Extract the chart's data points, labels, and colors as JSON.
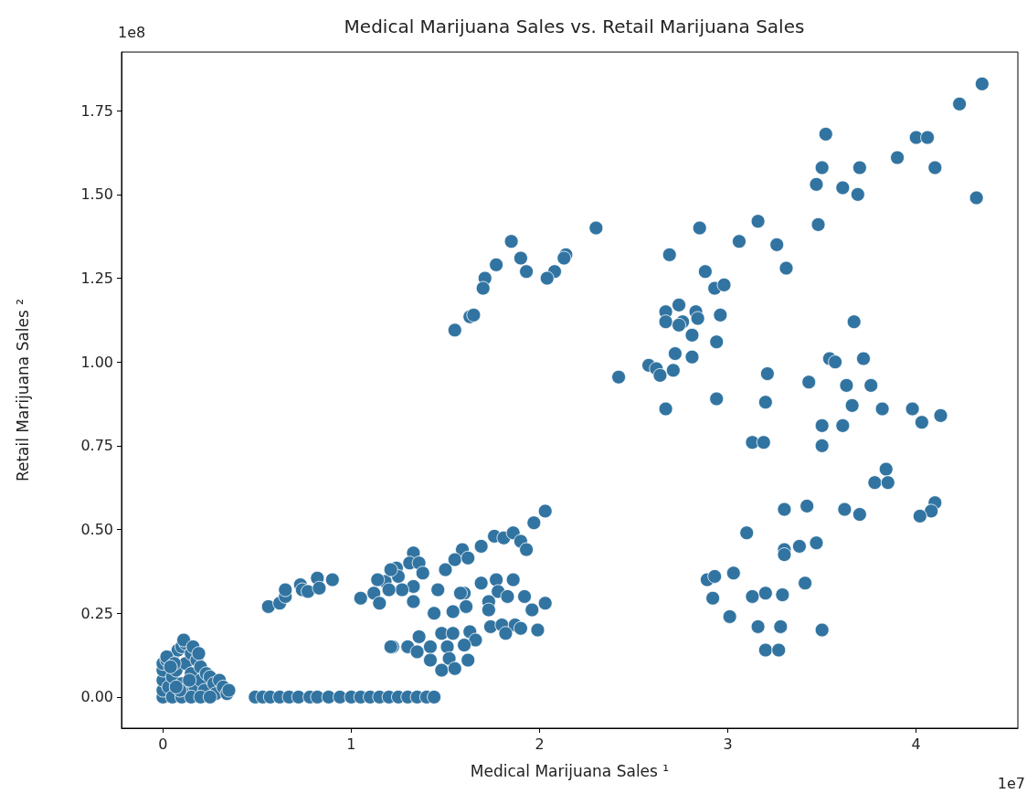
{
  "chart_data": {
    "type": "scatter",
    "title": "Medical Marijuana Sales vs. Retail Marijuana Sales",
    "xlabel": "Medical Marijuana Sales ¹",
    "ylabel": "Retail Marijuana Sales ²",
    "annotations": [
      "1e8",
      "1e7"
    ],
    "xlim": [
      -0.22,
      4.54
    ],
    "ylim": [
      -0.093,
      1.925
    ],
    "xticks": [
      0,
      1,
      2,
      3,
      4
    ],
    "yticks": [
      {
        "value": 0,
        "label": "0.00"
      },
      {
        "value": 0.25,
        "label": "0.25"
      },
      {
        "value": 0.5,
        "label": "0.50"
      },
      {
        "value": 0.75,
        "label": "0.75"
      },
      {
        "value": 1,
        "label": "1.00"
      },
      {
        "value": 1.25,
        "label": "1.25"
      },
      {
        "value": 1.5,
        "label": "1.50"
      },
      {
        "value": 1.75,
        "label": "1.75"
      }
    ],
    "grid": false,
    "marker": "circle",
    "series": [
      {
        "color": "#3274a1",
        "x": [
          4.35,
          4.23,
          3.52,
          4.0,
          4.06,
          3.9,
          3.5,
          3.7,
          4.1,
          3.47,
          3.61,
          3.69,
          4.32,
          3.16,
          3.48,
          3.26,
          3.31,
          3.67,
          3.54,
          3.57,
          3.72,
          3.21,
          3.43,
          3.63,
          3.76,
          3.2,
          3.66,
          3.82,
          3.98,
          4.13,
          4.03,
          3.5,
          3.61,
          3.13,
          3.19,
          3.5,
          3.84,
          3.78,
          3.85,
          3.3,
          3.42,
          3.62,
          3.7,
          4.1,
          4.08,
          4.02,
          3.1,
          3.3,
          3.3,
          3.38,
          3.47,
          3.41,
          3.2,
          3.13,
          3.29,
          3.16,
          3.28,
          3.5,
          3.2,
          3.27,
          2.3,
          2.85,
          3.06,
          2.69,
          2.88,
          2.93,
          2.98,
          2.74,
          2.67,
          2.67,
          2.76,
          2.74,
          2.83,
          2.84,
          2.96,
          2.81,
          2.94,
          2.72,
          2.81,
          2.58,
          2.62,
          2.64,
          2.71,
          2.42,
          2.67,
          2.94,
          2.89,
          2.93,
          3.03,
          2.92,
          3.01,
          1.85,
          1.9,
          1.93,
          1.77,
          1.71,
          1.7,
          1.63,
          1.65,
          1.55,
          2.14,
          2.13,
          2.08,
          2.04,
          2.03,
          1.97,
          1.76,
          1.81,
          1.86,
          1.9,
          1.93,
          1.69,
          1.59,
          1.55,
          1.62,
          1.5,
          1.33,
          1.31,
          1.36,
          1.24,
          1.38,
          1.25,
          1.18,
          1.14,
          1.33,
          1.27,
          1.2,
          1.12,
          1.05,
          1.15,
          1.33,
          1.46,
          1.6,
          1.58,
          1.61,
          1.54,
          1.44,
          1.69,
          1.77,
          1.86,
          1.78,
          1.83,
          1.73,
          1.73,
          1.92,
          1.96,
          2.03,
          1.74,
          1.8,
          1.87,
          1.9,
          1.82,
          1.99,
          1.22,
          1.3,
          1.36,
          1.35,
          1.42,
          1.48,
          1.54,
          1.63,
          1.66,
          1.51,
          1.6,
          1.52,
          1.42,
          1.48,
          1.55,
          1.62,
          0.56,
          0.62,
          0.65,
          0.65,
          0.73,
          0.74,
          0.77,
          0.82,
          0.83,
          0.9,
          1.21,
          1.21,
          0.49,
          0.53,
          0.57,
          0.62,
          0.67,
          0.72,
          0.78,
          0.82,
          0.88,
          0.94,
          1.0,
          1.05,
          1.1,
          1.15,
          1.2,
          1.25,
          1.3,
          1.35,
          1.4,
          1.44,
          0.0,
          0.0,
          0.0,
          0.0,
          0.0,
          0.02,
          0.03,
          0.05,
          0.05,
          0.07,
          0.08,
          0.1,
          0.1,
          0.12,
          0.12,
          0.13,
          0.15,
          0.15,
          0.17,
          0.18,
          0.2,
          0.2,
          0.22,
          0.23,
          0.25,
          0.27,
          0.28,
          0.3,
          0.32,
          0.34,
          0.35,
          0.05,
          0.1,
          0.15,
          0.2,
          0.25,
          0.02,
          0.06,
          0.09,
          0.14,
          0.11,
          0.16,
          0.19,
          0.07,
          0.04
        ],
        "values": [
          1.83,
          1.77,
          1.68,
          1.67,
          1.67,
          1.61,
          1.58,
          1.58,
          1.58,
          1.53,
          1.52,
          1.5,
          1.49,
          1.42,
          1.41,
          1.35,
          1.28,
          1.12,
          1.01,
          1.0,
          1.01,
          0.965,
          0.94,
          0.93,
          0.93,
          0.88,
          0.87,
          0.86,
          0.86,
          0.84,
          0.82,
          0.81,
          0.81,
          0.76,
          0.76,
          0.75,
          0.68,
          0.64,
          0.64,
          0.56,
          0.57,
          0.56,
          0.545,
          0.58,
          0.555,
          0.54,
          0.49,
          0.44,
          0.425,
          0.45,
          0.46,
          0.34,
          0.31,
          0.3,
          0.305,
          0.21,
          0.21,
          0.2,
          0.14,
          0.14,
          1.4,
          1.4,
          1.36,
          1.32,
          1.27,
          1.22,
          1.23,
          1.17,
          1.15,
          1.12,
          1.12,
          1.11,
          1.15,
          1.13,
          1.14,
          1.08,
          1.06,
          1.025,
          1.015,
          0.99,
          0.98,
          0.96,
          0.975,
          0.955,
          0.86,
          0.89,
          0.35,
          0.36,
          0.37,
          0.295,
          0.24,
          1.36,
          1.31,
          1.27,
          1.29,
          1.25,
          1.22,
          1.135,
          1.14,
          1.095,
          1.32,
          1.31,
          1.27,
          1.25,
          0.555,
          0.52,
          0.48,
          0.475,
          0.49,
          0.465,
          0.44,
          0.45,
          0.44,
          0.41,
          0.415,
          0.38,
          0.43,
          0.4,
          0.4,
          0.385,
          0.37,
          0.36,
          0.345,
          0.35,
          0.33,
          0.32,
          0.32,
          0.31,
          0.295,
          0.28,
          0.285,
          0.32,
          0.31,
          0.31,
          0.27,
          0.255,
          0.25,
          0.34,
          0.35,
          0.35,
          0.315,
          0.3,
          0.285,
          0.26,
          0.3,
          0.26,
          0.28,
          0.21,
          0.215,
          0.215,
          0.205,
          0.19,
          0.2,
          0.15,
          0.15,
          0.18,
          0.135,
          0.15,
          0.19,
          0.19,
          0.195,
          0.17,
          0.15,
          0.155,
          0.115,
          0.11,
          0.08,
          0.085,
          0.11,
          0.27,
          0.28,
          0.3,
          0.32,
          0.335,
          0.32,
          0.315,
          0.355,
          0.325,
          0.35,
          0.38,
          0.15,
          0,
          0,
          0,
          0,
          0,
          0,
          0,
          0,
          0,
          0,
          0,
          0,
          0,
          0,
          0,
          0,
          0,
          0,
          0,
          0,
          0.0,
          0.02,
          0.05,
          0.08,
          0.1,
          0.11,
          0.03,
          0.06,
          0.12,
          0.08,
          0.14,
          0.15,
          0.04,
          0.16,
          0.1,
          0.01,
          0.13,
          0.07,
          0.03,
          0.11,
          0.05,
          0.09,
          0.02,
          0.07,
          0.06,
          0.04,
          0.01,
          0.05,
          0.03,
          0.01,
          0.02,
          0,
          0,
          0,
          0,
          0,
          0.12,
          0.1,
          0.02,
          0.05,
          0.17,
          0.15,
          0.13,
          0.03,
          0.09
        ]
      }
    ]
  }
}
